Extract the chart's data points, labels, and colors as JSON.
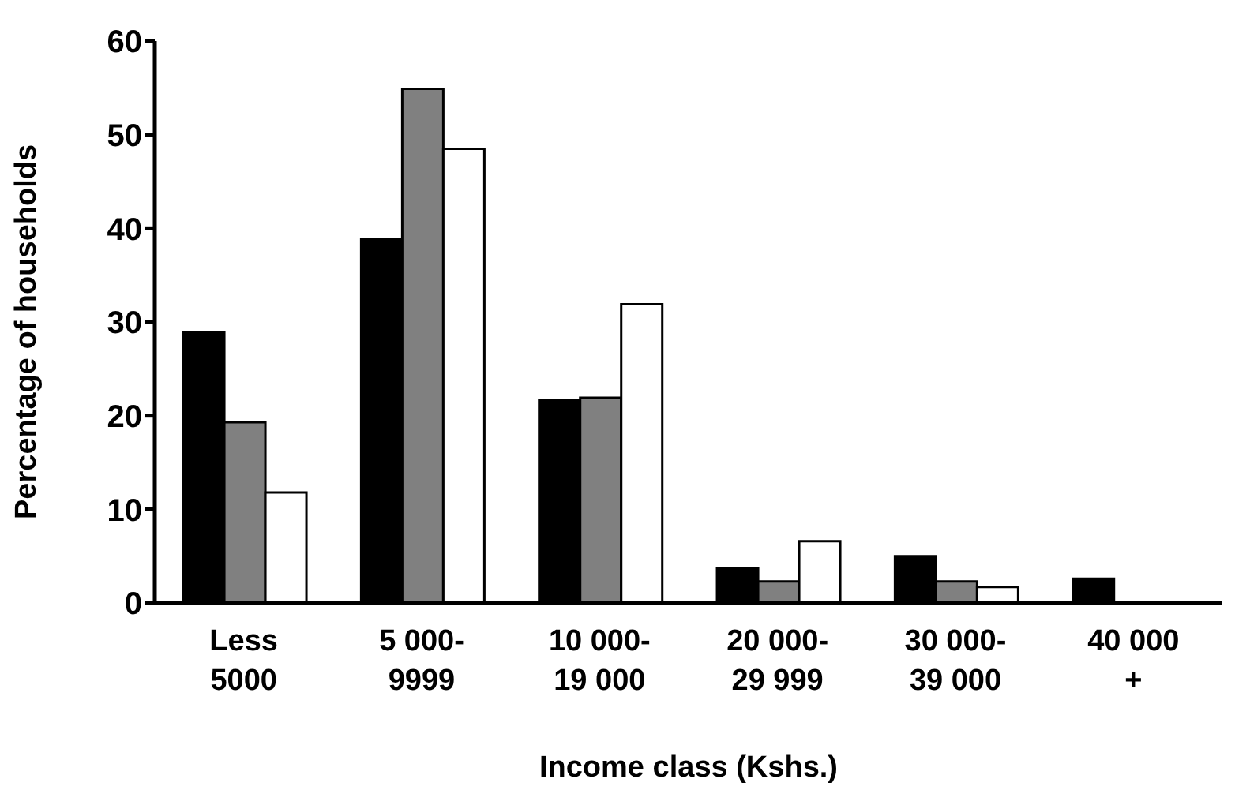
{
  "chart_data": {
    "type": "bar",
    "xlabel": "Income class (Kshs.)",
    "ylabel": "Percentage of households",
    "categories": [
      "Less\n5000",
      "5 000-\n9999",
      "10 000-\n19 000",
      "20 000-\n29 999",
      "30 000-\n39 000",
      "40 000\n+"
    ],
    "series": [
      {
        "color": "#000000",
        "values": [
          28.9,
          38.9,
          21.7,
          3.7,
          5.0,
          2.6
        ]
      },
      {
        "color": "#808080",
        "values": [
          19.3,
          54.9,
          21.9,
          2.3,
          2.3,
          0
        ]
      },
      {
        "color": "#ffffff",
        "values": [
          11.8,
          48.5,
          31.9,
          6.6,
          1.7,
          0
        ]
      }
    ],
    "ylim": [
      0,
      60
    ],
    "yticks": [
      0,
      10,
      20,
      30,
      40,
      50,
      60
    ],
    "grid": false,
    "legend": false
  }
}
